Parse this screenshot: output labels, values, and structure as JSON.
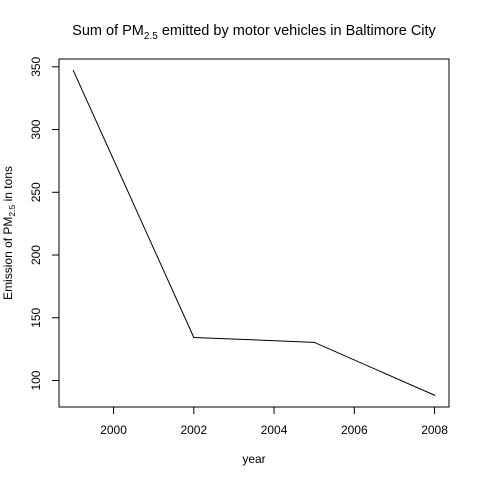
{
  "chart_data": {
    "type": "line",
    "title": {
      "prefix": "Sum of PM",
      "subscript": "2.5",
      "suffix": " emitted by motor vehicles in Baltimore City"
    },
    "xlabel": "year",
    "ylabel": {
      "prefix": "Emission of PM",
      "subscript": "2.5",
      "suffix": " in tons"
    },
    "x": [
      1999,
      2002,
      2005,
      2008
    ],
    "y": [
      346.82,
      134.31,
      130.43,
      88.28
    ],
    "xlim": [
      1998.64,
      2008.36
    ],
    "ylim": [
      78.9,
      356.2
    ],
    "xticks": [
      2000,
      2002,
      2004,
      2006,
      2008
    ],
    "yticks": [
      100,
      150,
      200,
      250,
      300,
      350
    ],
    "grid": false,
    "line_color": "#000000"
  }
}
